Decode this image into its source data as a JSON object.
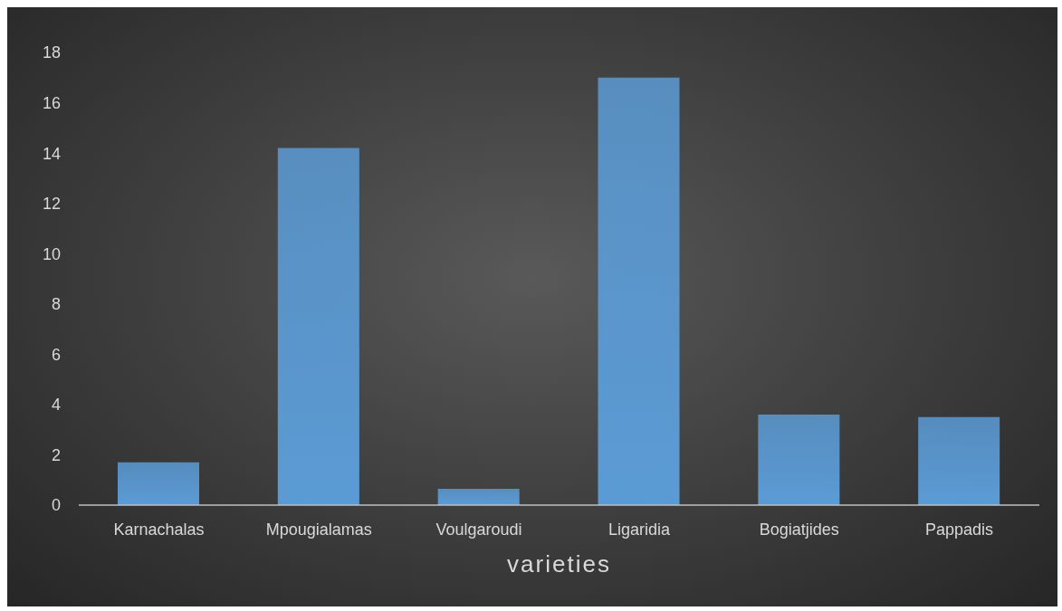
{
  "chart_data": {
    "type": "bar",
    "xlabel": "varieties",
    "categories": [
      "Karnachalas",
      "Mpougialamas",
      "Voulgaroudi",
      "Ligaridia",
      "Bogiatjides",
      "Pappadis"
    ],
    "values": [
      1.7,
      14.2,
      0.65,
      17.0,
      3.6,
      3.5
    ],
    "color": "#5b9bd5",
    "ylim": [
      0,
      18
    ],
    "yticks": [
      0,
      2,
      4,
      6,
      8,
      10,
      12,
      14,
      16,
      18
    ],
    "grid": false
  }
}
